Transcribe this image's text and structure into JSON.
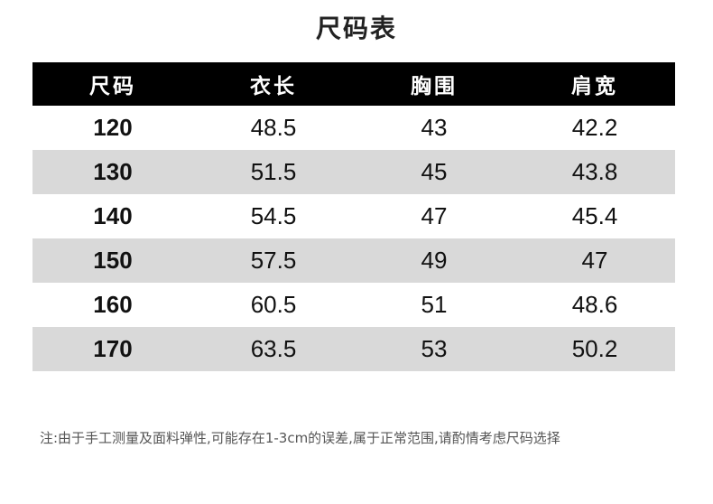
{
  "title": "尺码表",
  "table": {
    "headers": [
      "尺码",
      "衣长",
      "胸围",
      "肩宽"
    ],
    "rows": [
      [
        "120",
        "48.5",
        "43",
        "42.2"
      ],
      [
        "130",
        "51.5",
        "45",
        "43.8"
      ],
      [
        "140",
        "54.5",
        "47",
        "45.4"
      ],
      [
        "150",
        "57.5",
        "49",
        "47"
      ],
      [
        "160",
        "60.5",
        "51",
        "48.6"
      ],
      [
        "170",
        "63.5",
        "53",
        "50.2"
      ]
    ]
  },
  "note": "注:由于手工测量及面料弹性,可能存在1-3cm的误差,属于正常范围,请酌情考虑尺码选择",
  "colors": {
    "header_bg": "#000000",
    "stripe": "#d9d9d9"
  }
}
